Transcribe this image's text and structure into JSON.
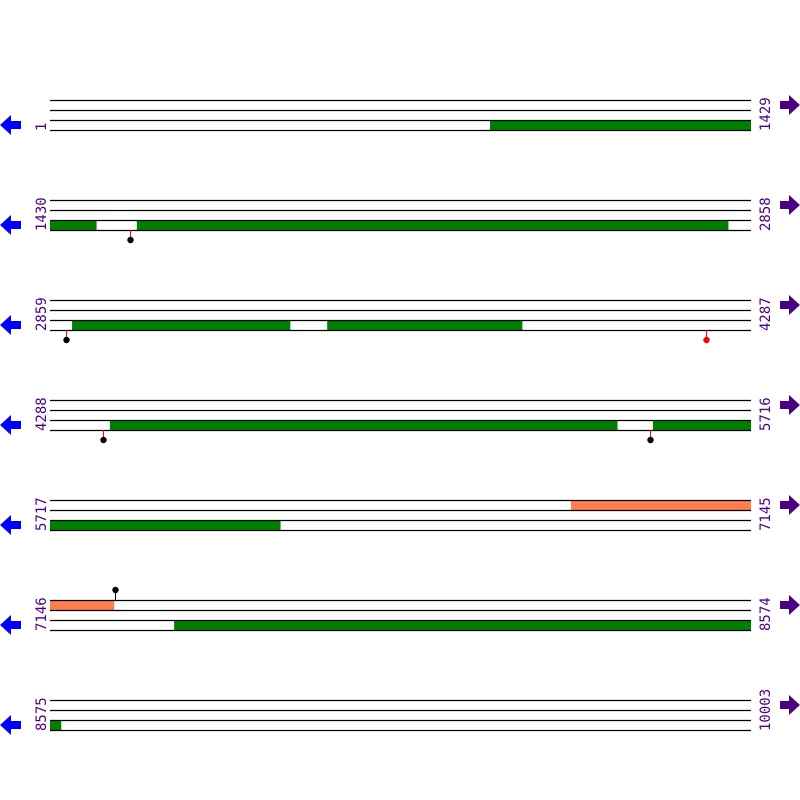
{
  "colors": {
    "line": "#000000",
    "orf": "#008000",
    "orf_alt": "#ff7f50",
    "label": "#4b0082",
    "left_arrow": "#0000ff",
    "right_arrow": "#4b0082",
    "marker_stem_red": "#ff0000",
    "marker_black": "#000000",
    "marker_red": "#ff0000"
  },
  "icons": {
    "left": "arrow-left-icon",
    "right": "arrow-right-icon"
  },
  "rows": [
    {
      "start": "1",
      "end": "1429",
      "s": 1,
      "e": 1429,
      "features": [
        {
          "frame": 3,
          "from": 898,
          "to": 1429,
          "color": "#008000"
        }
      ],
      "markers": []
    },
    {
      "start": "1430",
      "end": "2858",
      "s": 1430,
      "e": 2858,
      "features": [
        {
          "frame": 3,
          "from": 1430,
          "to": 1524,
          "color": "#008000"
        },
        {
          "frame": 3,
          "from": 1607,
          "to": 2812,
          "color": "#008000"
        }
      ],
      "markers": [
        {
          "pos": 1593,
          "color": "#000000",
          "side": "below"
        }
      ]
    },
    {
      "start": "2859",
      "end": "4287",
      "s": 2859,
      "e": 4287,
      "features": [
        {
          "frame": 3,
          "from": 2904,
          "to": 3348,
          "color": "#008000"
        },
        {
          "frame": 3,
          "from": 3424,
          "to": 3821,
          "color": "#008000"
        }
      ],
      "markers": [
        {
          "pos": 2892,
          "color": "#000000",
          "side": "below"
        },
        {
          "pos": 4196,
          "color": "#ff0000",
          "side": "below"
        }
      ]
    },
    {
      "start": "4288",
      "end": "5716",
      "s": 4288,
      "e": 5716,
      "features": [
        {
          "frame": 3,
          "from": 4410,
          "to": 5444,
          "color": "#008000"
        },
        {
          "frame": 3,
          "from": 5517,
          "to": 5716,
          "color": "#008000"
        }
      ],
      "markers": [
        {
          "pos": 4396,
          "color": "#000000",
          "side": "below"
        },
        {
          "pos": 5511,
          "color": "#000000",
          "side": "below"
        }
      ]
    },
    {
      "start": "5717",
      "end": "7145",
      "s": 5717,
      "e": 7145,
      "features": [
        {
          "frame": 1,
          "from": 6779,
          "to": 7145,
          "color": "#ff7f50"
        },
        {
          "frame": 3,
          "from": 5717,
          "to": 6186,
          "color": "#008000"
        }
      ],
      "markers": []
    },
    {
      "start": "7146",
      "end": "8574",
      "s": 7146,
      "e": 8574,
      "features": [
        {
          "frame": 1,
          "from": 7146,
          "to": 7276,
          "color": "#ff7f50"
        },
        {
          "frame": 3,
          "from": 7399,
          "to": 8574,
          "color": "#008000"
        }
      ],
      "markers": [
        {
          "pos": 7278,
          "color": "#000000",
          "side": "above"
        }
      ]
    },
    {
      "start": "8575",
      "end": "10003",
      "s": 8575,
      "e": 10003,
      "features": [
        {
          "frame": 3,
          "from": 8575,
          "to": 8597,
          "color": "#008000"
        }
      ],
      "markers": []
    }
  ]
}
